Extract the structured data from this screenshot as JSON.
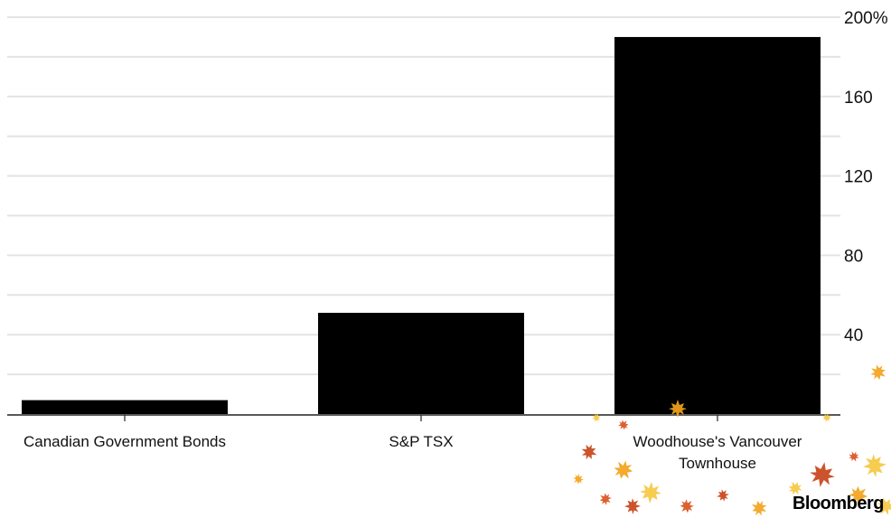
{
  "chart_data": {
    "type": "bar",
    "categories": [
      "Canadian Government Bonds",
      "S&P TSX",
      "Woodhouse's Vancouver Townhouse"
    ],
    "category_lines": [
      [
        "Canadian Government Bonds"
      ],
      [
        "S&P TSX"
      ],
      [
        "Woodhouse's Vancouver",
        "Townhouse"
      ]
    ],
    "values": [
      7,
      51,
      190
    ],
    "ylim": [
      0,
      200
    ],
    "y_ticks": [
      40,
      80,
      120,
      160,
      200
    ],
    "y_tick_labels": [
      "40",
      "80",
      "120",
      "160",
      "200%"
    ],
    "minor_grid_step": 20,
    "grid": true,
    "y_axis_side": "right",
    "bar_color": "#000000",
    "grid_color": "#e3e3e3"
  },
  "brand": {
    "name": "Bloomberg"
  },
  "decoration": {
    "icon": "maple-leaf-icon",
    "colors": [
      "#f2a31b",
      "#d9531e",
      "#f5c842",
      "#c8441a"
    ]
  }
}
